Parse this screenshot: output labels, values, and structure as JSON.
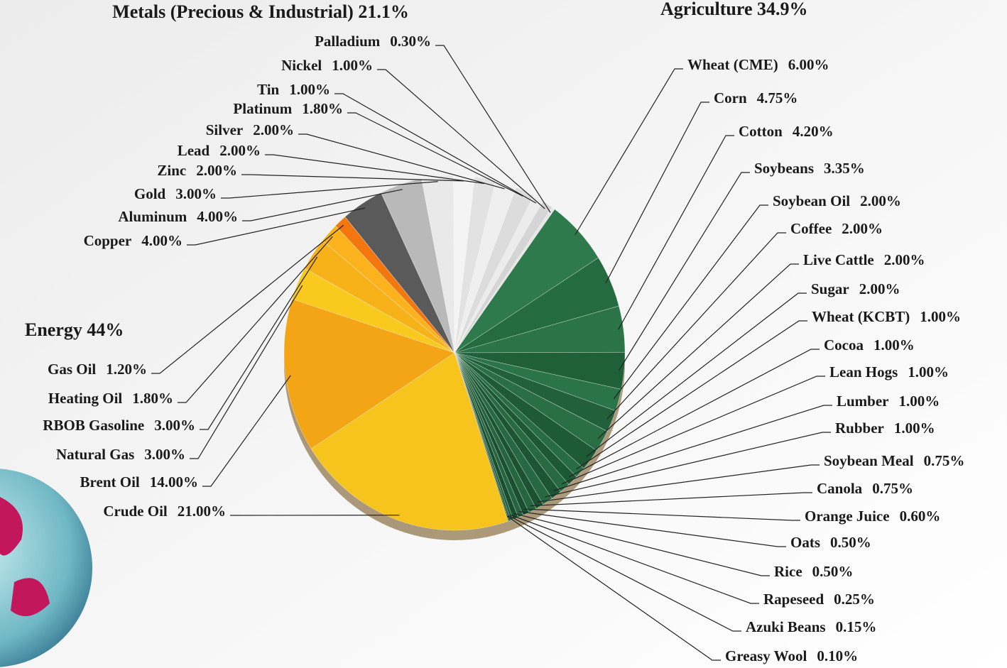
{
  "chart_data": {
    "type": "pie",
    "groups": [
      "Metals (Precious & Industrial) 21.1%",
      "Agriculture 34.9%",
      "Energy 44%"
    ],
    "categories": [
      "Wheat (CME)",
      "Corn",
      "Cotton",
      "Soybeans",
      "Soybean Oil",
      "Coffee",
      "Live Cattle",
      "Sugar",
      "Wheat (KCBT)",
      "Cocoa",
      "Lean Hogs",
      "Lumber",
      "Rubber",
      "Soybean Meal",
      "Canola",
      "Orange Juice",
      "Oats",
      "Rice",
      "Rapeseed",
      "Azuki Beans",
      "Greasy Wool",
      "Crude Oil",
      "Brent Oil",
      "Natural Gas",
      "RBOB Gasoline",
      "Heating Oil",
      "Gas Oil",
      "Copper",
      "Aluminum",
      "Gold",
      "Zinc",
      "Lead",
      "Silver",
      "Platinum",
      "Tin",
      "Nickel",
      "Palladium"
    ],
    "values": [
      6,
      4.75,
      4.2,
      3.35,
      2,
      2,
      2,
      2,
      1,
      1,
      1,
      1,
      1,
      0.75,
      0.75,
      0.6,
      0.5,
      0.5,
      0.25,
      0.15,
      0.1,
      21,
      14,
      3,
      3,
      1.8,
      1.2,
      4,
      4,
      3,
      2,
      2,
      2,
      1.8,
      1,
      1,
      0.3
    ],
    "value_labels": [
      "6.00%",
      "4.75%",
      "4.20%",
      "3.35%",
      "2.00%",
      "2.00%",
      "2.00%",
      "2.00%",
      "1.00%",
      "1.00%",
      "1.00%",
      "1.00%",
      "1.00%",
      "0.75%",
      "0.75%",
      "0.60%",
      "0.50%",
      "0.50%",
      "0.25%",
      "0.15%",
      "0.10%",
      "21.00%",
      "14.00%",
      "3.00%",
      "3.00%",
      "1.80%",
      "1.20%",
      "4.00%",
      "4.00%",
      "3.00%",
      "2.00%",
      "2.00%",
      "2.00%",
      "1.80%",
      "1.00%",
      "1.00%",
      "0.30%"
    ],
    "colors": [
      "#2f7a4c",
      "#256b41",
      "#2a7447",
      "#1f6039",
      "#2b7348",
      "#225f3b",
      "#2a6e45",
      "#1e5a36",
      "#286c43",
      "#1d5834",
      "#276a42",
      "#1c5533",
      "#266841",
      "#1b5232",
      "#25663f",
      "#1a5031",
      "#24643e",
      "#194e30",
      "#23623d",
      "#184c2f",
      "#22603c",
      "#f6c41c",
      "#f4a515",
      "#f9c91e",
      "#f7b21a",
      "#fbb21c",
      "#f4760f",
      "#5a5a5a",
      "#b9b9b9",
      "#e9e9e9",
      "#f4f4f4",
      "#e2e2e2",
      "#efefef",
      "#dcdcdc",
      "#ececec",
      "#d5d5d5",
      "#e6e6e6"
    ]
  }
}
